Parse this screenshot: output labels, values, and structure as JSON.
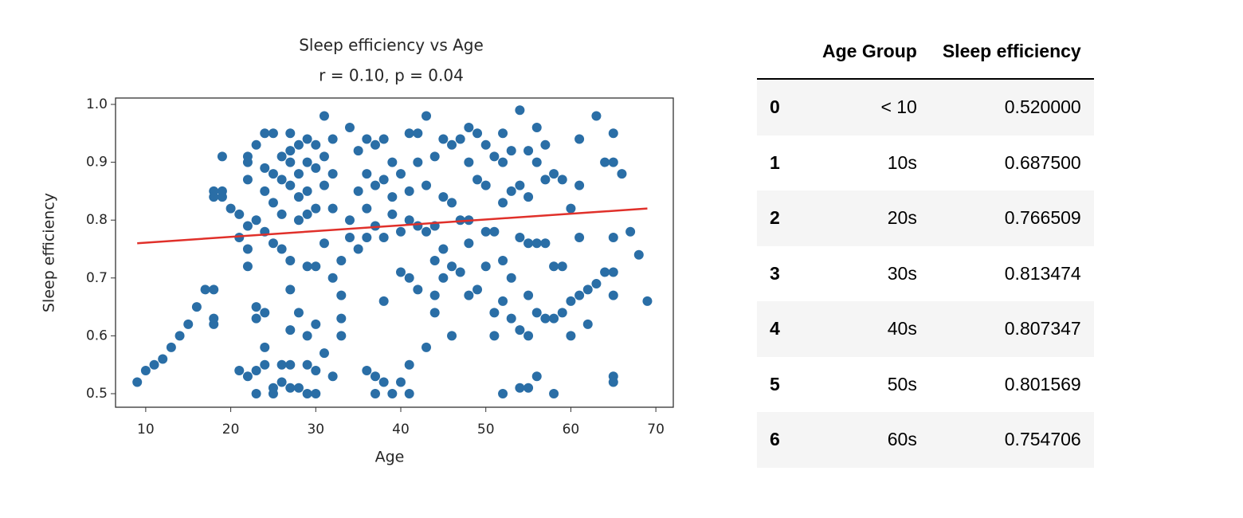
{
  "chart_data": {
    "type": "scatter",
    "title": "Sleep efficiency vs Age",
    "subtitle": "r = 0.10, p = 0.04",
    "x_label": "Age",
    "y_label": "Sleep efficiency",
    "xlim": [
      6.45,
      72.05
    ],
    "ylim": [
      0.4766,
      1.011
    ],
    "xticks": [
      10,
      20,
      30,
      40,
      50,
      60,
      70
    ],
    "yticks": [
      0.5,
      0.6,
      0.7,
      0.8,
      0.9,
      {
        "value": 1,
        "label": "1.0"
      }
    ],
    "color": "#2a6ea6",
    "x": [
      9,
      10,
      11,
      12,
      13,
      14,
      15,
      16,
      17,
      18,
      18,
      18,
      18,
      18,
      19,
      19,
      19,
      20,
      21,
      21,
      21,
      22,
      22,
      22,
      22,
      22,
      22,
      22,
      23,
      23,
      23,
      23,
      23,
      23,
      24,
      24,
      24,
      24,
      24,
      24,
      24,
      25,
      25,
      25,
      25,
      25,
      25,
      26,
      26,
      26,
      26,
      26,
      26,
      27,
      27,
      27,
      27,
      27,
      27,
      27,
      27,
      27,
      28,
      28,
      28,
      28,
      28,
      28,
      29,
      29,
      29,
      29,
      29,
      29,
      29,
      29,
      30,
      30,
      30,
      30,
      30,
      30,
      30,
      31,
      31,
      31,
      31,
      31,
      32,
      32,
      32,
      32,
      32,
      33,
      33,
      33,
      33,
      34,
      34,
      34,
      35,
      35,
      35,
      36,
      36,
      36,
      36,
      36,
      37,
      37,
      37,
      37,
      37,
      38,
      38,
      38,
      38,
      38,
      39,
      39,
      39,
      39,
      40,
      40,
      40,
      40,
      41,
      41,
      41,
      41,
      41,
      41,
      42,
      42,
      42,
      42,
      43,
      43,
      43,
      43,
      44,
      44,
      44,
      44,
      44,
      45,
      45,
      45,
      45,
      46,
      46,
      46,
      46,
      47,
      47,
      47,
      48,
      48,
      48,
      48,
      48,
      49,
      49,
      49,
      50,
      50,
      50,
      50,
      51,
      51,
      51,
      51,
      52,
      52,
      52,
      52,
      52,
      52,
      53,
      53,
      53,
      53,
      54,
      54,
      54,
      54,
      54,
      55,
      55,
      55,
      55,
      55,
      55,
      56,
      56,
      56,
      56,
      56,
      57,
      57,
      57,
      57,
      58,
      58,
      58,
      58,
      59,
      59,
      59,
      60,
      60,
      60,
      61,
      61,
      61,
      61,
      62,
      62,
      63,
      63,
      64,
      64,
      65,
      65,
      65,
      65,
      65,
      65,
      65,
      66,
      67,
      68,
      69
    ],
    "values": [
      0.52,
      0.54,
      0.55,
      0.56,
      0.58,
      0.6,
      0.62,
      0.65,
      0.68,
      0.68,
      0.63,
      0.62,
      0.85,
      0.84,
      0.85,
      0.84,
      0.91,
      0.82,
      0.81,
      0.77,
      0.54,
      0.53,
      0.72,
      0.75,
      0.79,
      0.87,
      0.9,
      0.91,
      0.93,
      0.8,
      0.65,
      0.63,
      0.54,
      0.5,
      0.95,
      0.89,
      0.85,
      0.78,
      0.64,
      0.58,
      0.55,
      0.95,
      0.88,
      0.83,
      0.76,
      0.5,
      0.51,
      0.91,
      0.87,
      0.81,
      0.75,
      0.52,
      0.55,
      0.95,
      0.92,
      0.9,
      0.86,
      0.73,
      0.68,
      0.61,
      0.55,
      0.51,
      0.93,
      0.88,
      0.84,
      0.8,
      0.64,
      0.51,
      0.94,
      0.9,
      0.85,
      0.81,
      0.72,
      0.6,
      0.55,
      0.5,
      0.93,
      0.89,
      0.82,
      0.72,
      0.62,
      0.54,
      0.5,
      0.98,
      0.91,
      0.86,
      0.76,
      0.57,
      0.94,
      0.88,
      0.82,
      0.7,
      0.53,
      0.73,
      0.67,
      0.63,
      0.6,
      0.96,
      0.8,
      0.77,
      0.92,
      0.85,
      0.75,
      0.94,
      0.88,
      0.82,
      0.77,
      0.54,
      0.93,
      0.86,
      0.79,
      0.53,
      0.5,
      0.94,
      0.87,
      0.77,
      0.66,
      0.52,
      0.9,
      0.84,
      0.81,
      0.5,
      0.88,
      0.78,
      0.71,
      0.52,
      0.95,
      0.85,
      0.8,
      0.7,
      0.55,
      0.5,
      0.95,
      0.9,
      0.79,
      0.68,
      0.98,
      0.86,
      0.78,
      0.58,
      0.91,
      0.79,
      0.73,
      0.67,
      0.64,
      0.94,
      0.84,
      0.75,
      0.7,
      0.93,
      0.83,
      0.72,
      0.6,
      0.94,
      0.8,
      0.71,
      0.96,
      0.9,
      0.8,
      0.76,
      0.67,
      0.95,
      0.87,
      0.68,
      0.93,
      0.86,
      0.78,
      0.72,
      0.91,
      0.78,
      0.64,
      0.6,
      0.95,
      0.9,
      0.83,
      0.73,
      0.66,
      0.5,
      0.92,
      0.85,
      0.7,
      0.63,
      0.99,
      0.86,
      0.77,
      0.61,
      0.51,
      0.92,
      0.84,
      0.76,
      0.67,
      0.6,
      0.51,
      0.96,
      0.9,
      0.76,
      0.64,
      0.53,
      0.93,
      0.87,
      0.76,
      0.63,
      0.88,
      0.72,
      0.63,
      0.5,
      0.87,
      0.72,
      0.64,
      0.82,
      0.66,
      0.6,
      0.94,
      0.86,
      0.77,
      0.67,
      0.68,
      0.62,
      0.98,
      0.69,
      0.9,
      0.71,
      0.95,
      0.9,
      0.77,
      0.71,
      0.67,
      0.53,
      0.52,
      0.88,
      0.78,
      0.74,
      0.66
    ],
    "fit_line": {
      "x": [
        9,
        69
      ],
      "values": [
        0.76,
        0.82
      ],
      "color": "#e0302a"
    }
  },
  "table": {
    "columns": [
      "Age Group",
      "Sleep efficiency"
    ],
    "rows": [
      [
        "0",
        "< 10",
        "0.520000"
      ],
      [
        "1",
        "10s",
        "0.687500"
      ],
      [
        "2",
        "20s",
        "0.766509"
      ],
      [
        "3",
        "30s",
        "0.813474"
      ],
      [
        "4",
        "40s",
        "0.807347"
      ],
      [
        "5",
        "50s",
        "0.801569"
      ],
      [
        "6",
        "60s",
        "0.754706"
      ]
    ]
  }
}
